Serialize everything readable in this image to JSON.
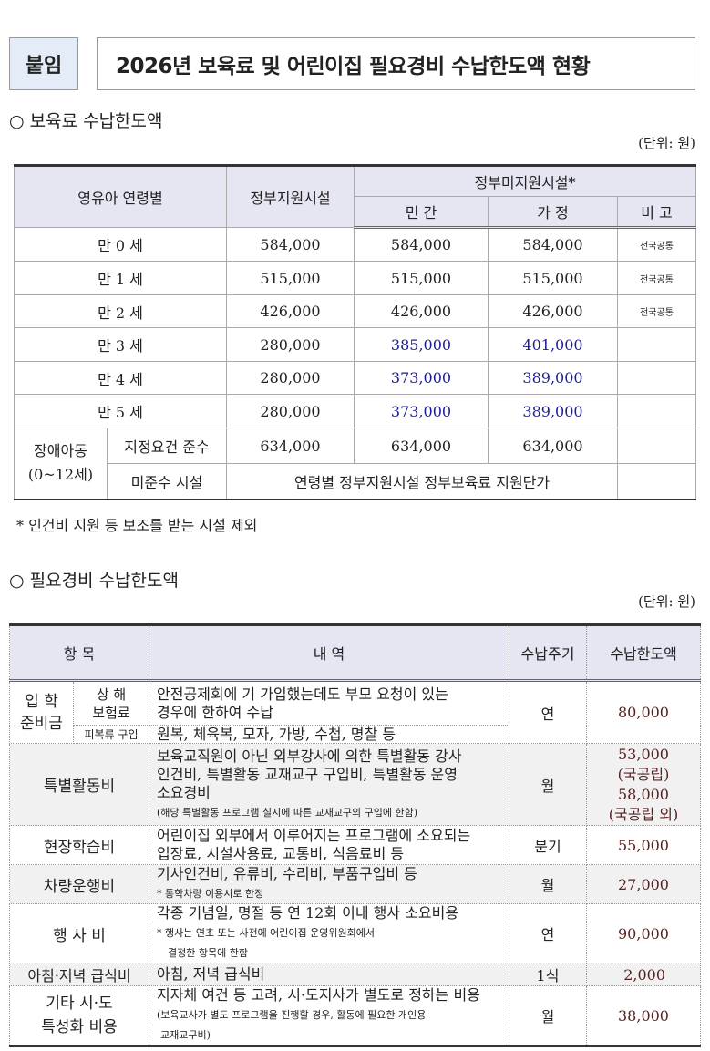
{
  "tag": "붙임",
  "title": "2026년 보육료 및 어린이집 필요경비 수납한도액 현황",
  "section1": {
    "heading": "○ 보육료 수납한도액",
    "unit": "(단위: 원)",
    "headers": {
      "age": "영유아 연령별",
      "gov": "정부지원시설",
      "nongov": "정부미지원시설*",
      "private": "민 간",
      "home": "가 정",
      "note": "비 고"
    },
    "rows": [
      {
        "age": "만 0 세",
        "gov": "584,000",
        "private": "584,000",
        "home": "584,000",
        "note": "전국공통"
      },
      {
        "age": "만 1 세",
        "gov": "515,000",
        "private": "515,000",
        "home": "515,000",
        "note": "전국공통"
      },
      {
        "age": "만 2 세",
        "gov": "426,000",
        "private": "426,000",
        "home": "426,000",
        "note": "전국공통"
      },
      {
        "age": "만 3 세",
        "gov": "280,000",
        "private": "385,000",
        "home": "401,000",
        "note": ""
      },
      {
        "age": "만 4 세",
        "gov": "280,000",
        "private": "373,000",
        "home": "389,000",
        "note": ""
      },
      {
        "age": "만 5 세",
        "gov": "280,000",
        "private": "373,000",
        "home": "389,000",
        "note": ""
      }
    ],
    "disabled": {
      "label1": "장애아동",
      "label2": "(0~12세)",
      "r1": {
        "label": "지정요건 준수",
        "gov": "634,000",
        "private": "634,000",
        "home": "634,000"
      },
      "r2": {
        "label": "미준수 시설",
        "text": "연령별 정부지원시설 정부보육료 지원단가"
      }
    },
    "footnote": "* 인건비 지원 등 보조를 받는 시설 제외",
    "highlight_color": "#1c1c96"
  },
  "section2": {
    "heading": "○ 필요경비 수납한도액",
    "unit": "(단위: 원)",
    "headers": {
      "item": "항 목",
      "desc": "내 역",
      "cycle": "수납주기",
      "limit": "수납한도액"
    },
    "entrance": {
      "label1": "입 학",
      "label2": "준비금",
      "sub1a": "상 해",
      "sub1b": "보험료",
      "desc1a": "안전공제회에 기 가입했는데도 부모 요청이 있는",
      "desc1b": "경우에 한하여 수납",
      "sub2": "피복류 구입",
      "desc2": "원복, 체육복, 모자, 가방, 수첩, 명찰 등",
      "cycle": "연",
      "limit": "80,000"
    },
    "special": {
      "label": "특별활동비",
      "desc1": "보육교직원이 아닌 외부강사에 의한 특별활동 강사",
      "desc2": "인건비, 특별활동 교재교구 구입비, 특별활동 운영",
      "desc3": "소요경비",
      "note": "(해당 특별활동 프로그램 실시에 따른 교재교구의 구입에 한함)",
      "cycle": "월",
      "limit1": "53,000",
      "limit1_note": "(국공립)",
      "limit2": "58,000",
      "limit2_note": "(국공립 외)"
    },
    "field": {
      "label": "현장학습비",
      "desc1": "어린이집 외부에서 이루어지는 프로그램에 소요되는",
      "desc2": "입장료, 시설사용료, 교통비, 식음료비 등",
      "cycle": "분기",
      "limit": "55,000"
    },
    "vehicle": {
      "label": "차량운행비",
      "desc1": "기사인건비, 유류비, 수리비, 부품구입비 등",
      "note": "* 통학차량 이용시로 한정",
      "cycle": "월",
      "limit": "27,000"
    },
    "event": {
      "label": "행 사 비",
      "desc1": "각종 기념일, 명절 등 연 12회 이내 행사 소요비용",
      "note1": "* 행사는 연초 또는 사전에 어린이집 운영위원회에서",
      "note2": "결정한 항목에 한함",
      "cycle": "연",
      "limit": "90,000"
    },
    "meal": {
      "label": "아침·저녁 급식비",
      "desc1": "아침, 저녁 급식비",
      "cycle": "1식",
      "limit": "2,000"
    },
    "other": {
      "label1": "기타 시·도",
      "label2": "특성화 비용",
      "desc1": "지자체 여건 등 고려, 시·도지사가 별도로 정하는 비용",
      "note1": "(보육교사가 별도 프로그램을 진행할 경우, 활동에 필요한 개인용",
      "note2": "교재교구비)",
      "cycle": "월",
      "limit": "38,000"
    },
    "amount_color": "#5a1f1f"
  }
}
